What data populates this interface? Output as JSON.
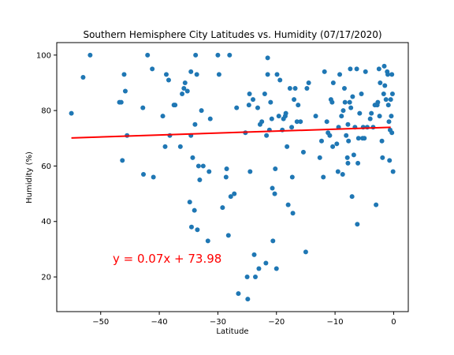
{
  "chart_data": {
    "type": "scatter",
    "title": "Southern Hemisphere City Latitudes vs. Humidity (07/17/2020)",
    "xlabel": "Latitude",
    "ylabel": "Humidity (%)",
    "xlim": [
      -57.5,
      2.5
    ],
    "ylim": [
      7.5,
      104.5
    ],
    "xticks": [
      -50,
      -40,
      -30,
      -20,
      -10,
      0
    ],
    "yticks": [
      20,
      40,
      60,
      80,
      100
    ],
    "grid": false,
    "marker_color": "#1f77b4",
    "line_color": "#ff0000",
    "regression": {
      "slope": 0.07,
      "intercept": 73.98,
      "x_range": [
        -55,
        -0.5
      ],
      "label": "y = 0.07x + 73.98"
    },
    "points": [
      [
        -55,
        79
      ],
      [
        -53,
        92
      ],
      [
        -51.8,
        100
      ],
      [
        -46.8,
        83
      ],
      [
        -46.5,
        83
      ],
      [
        -46.3,
        62
      ],
      [
        -46,
        93
      ],
      [
        -45.8,
        87
      ],
      [
        -45.5,
        71
      ],
      [
        -42.8,
        81
      ],
      [
        -42.7,
        57
      ],
      [
        -42,
        100
      ],
      [
        -41.2,
        95
      ],
      [
        -41,
        56
      ],
      [
        -39.4,
        78
      ],
      [
        -39,
        67
      ],
      [
        -38.8,
        93
      ],
      [
        -38.4,
        91
      ],
      [
        -38.2,
        71
      ],
      [
        -37.5,
        82
      ],
      [
        -37.3,
        82
      ],
      [
        -36.4,
        67
      ],
      [
        -36.1,
        86
      ],
      [
        -35.8,
        88
      ],
      [
        -35.6,
        90
      ],
      [
        -35.2,
        87
      ],
      [
        -34.8,
        47
      ],
      [
        -34.6,
        94
      ],
      [
        -34.5,
        38
      ],
      [
        -34.6,
        71
      ],
      [
        -34.3,
        63
      ],
      [
        -34,
        44
      ],
      [
        -33.9,
        75
      ],
      [
        -33.8,
        100
      ],
      [
        -33.6,
        93
      ],
      [
        -33.5,
        37
      ],
      [
        -33.3,
        60
      ],
      [
        -33.1,
        55
      ],
      [
        -32.8,
        80
      ],
      [
        -32.5,
        60
      ],
      [
        -31.7,
        33
      ],
      [
        -31.5,
        58
      ],
      [
        -31.3,
        77
      ],
      [
        -30,
        100
      ],
      [
        -29.8,
        93
      ],
      [
        -29.2,
        45
      ],
      [
        -28.6,
        56
      ],
      [
        -28.5,
        59
      ],
      [
        -28.2,
        35
      ],
      [
        -28,
        100
      ],
      [
        -27.8,
        49
      ],
      [
        -27.2,
        50
      ],
      [
        -26.8,
        81
      ],
      [
        -26.5,
        14
      ],
      [
        -25.3,
        72
      ],
      [
        -25,
        20
      ],
      [
        -24.9,
        12
      ],
      [
        -24.7,
        82
      ],
      [
        -24.6,
        86
      ],
      [
        -24.5,
        58
      ],
      [
        -24,
        84
      ],
      [
        -23.8,
        28
      ],
      [
        -23.6,
        20
      ],
      [
        -23.2,
        81
      ],
      [
        -23,
        23
      ],
      [
        -22.8,
        75
      ],
      [
        -22.5,
        76
      ],
      [
        -22,
        86
      ],
      [
        -21.8,
        25
      ],
      [
        -21.7,
        71
      ],
      [
        -21.5,
        99
      ],
      [
        -21.5,
        93
      ],
      [
        -21.2,
        73
      ],
      [
        -21,
        83
      ],
      [
        -20.8,
        77
      ],
      [
        -20.7,
        52
      ],
      [
        -20.6,
        33
      ],
      [
        -20.3,
        50
      ],
      [
        -20.2,
        59
      ],
      [
        -20,
        23
      ],
      [
        -19.9,
        93
      ],
      [
        -19.6,
        78
      ],
      [
        -19.4,
        91
      ],
      [
        -19,
        73
      ],
      [
        -18.8,
        77
      ],
      [
        -18.5,
        78
      ],
      [
        -18.4,
        79
      ],
      [
        -18.2,
        67
      ],
      [
        -18,
        46
      ],
      [
        -17.7,
        88
      ],
      [
        -17.4,
        74
      ],
      [
        -17.3,
        56
      ],
      [
        -17.2,
        43
      ],
      [
        -17,
        84
      ],
      [
        -16.8,
        88
      ],
      [
        -16.5,
        76
      ],
      [
        -16.3,
        82
      ],
      [
        -15.9,
        76
      ],
      [
        -15.4,
        65
      ],
      [
        -15,
        29
      ],
      [
        -14.8,
        88
      ],
      [
        -14.5,
        90
      ],
      [
        -13.3,
        78
      ],
      [
        -12.6,
        63
      ],
      [
        -12.3,
        69
      ],
      [
        -12,
        56
      ],
      [
        -11.8,
        94
      ],
      [
        -11.4,
        76
      ],
      [
        -11.2,
        72
      ],
      [
        -10.9,
        71
      ],
      [
        -10.7,
        84
      ],
      [
        -10.5,
        83
      ],
      [
        -10.4,
        67
      ],
      [
        -10.3,
        90
      ],
      [
        -9.7,
        68
      ],
      [
        -9.5,
        58
      ],
      [
        -9.4,
        74
      ],
      [
        -9.2,
        93
      ],
      [
        -8.9,
        78
      ],
      [
        -8.7,
        57
      ],
      [
        -8.6,
        80
      ],
      [
        -8.4,
        88
      ],
      [
        -8.3,
        83
      ],
      [
        -8.1,
        71
      ],
      [
        -7.9,
        63
      ],
      [
        -7.8,
        75
      ],
      [
        -7.8,
        61
      ],
      [
        -7.7,
        69
      ],
      [
        -7.5,
        83
      ],
      [
        -7.4,
        95
      ],
      [
        -7.3,
        81
      ],
      [
        -7.1,
        49
      ],
      [
        -7,
        85
      ],
      [
        -6.8,
        64
      ],
      [
        -6.6,
        74
      ],
      [
        -6.3,
        95
      ],
      [
        -6.2,
        39
      ],
      [
        -6.1,
        61
      ],
      [
        -6,
        70
      ],
      [
        -5.8,
        79
      ],
      [
        -5.5,
        86
      ],
      [
        -5.3,
        70
      ],
      [
        -5.2,
        74
      ],
      [
        -5,
        70
      ],
      [
        -4.8,
        94
      ],
      [
        -4.5,
        74
      ],
      [
        -4,
        77
      ],
      [
        -3.8,
        79
      ],
      [
        -3.5,
        74
      ],
      [
        -3.2,
        82
      ],
      [
        -3,
        46
      ],
      [
        -2.8,
        82
      ],
      [
        -2.7,
        83
      ],
      [
        -2.5,
        95
      ],
      [
        -2.4,
        78
      ],
      [
        -2.3,
        90
      ],
      [
        -2,
        69
      ],
      [
        -1.9,
        63
      ],
      [
        -1.7,
        86
      ],
      [
        -1.6,
        96
      ],
      [
        -1.5,
        89
      ],
      [
        -1.3,
        84
      ],
      [
        -1.1,
        94
      ],
      [
        -1,
        93
      ],
      [
        -0.9,
        82
      ],
      [
        -0.8,
        76
      ],
      [
        -0.7,
        62
      ],
      [
        -0.6,
        73
      ],
      [
        -0.5,
        84
      ],
      [
        -0.4,
        78
      ],
      [
        -0.3,
        72
      ],
      [
        -0.2,
        86
      ],
      [
        -0.1,
        58
      ],
      [
        -0.3,
        93
      ]
    ]
  }
}
